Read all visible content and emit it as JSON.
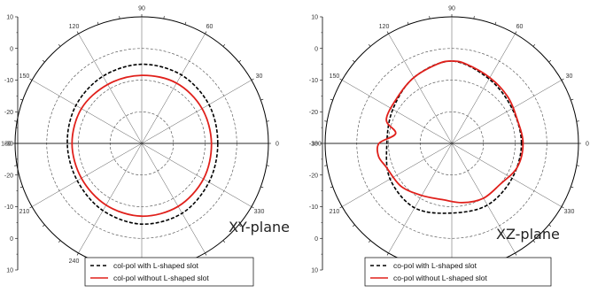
{
  "chart_data": [
    {
      "type": "polar",
      "title": "",
      "plane_label": "XY-plane",
      "r_range": [
        -30,
        10
      ],
      "r_ticks": [
        10,
        0,
        -10,
        -20,
        -30,
        -20,
        -10,
        0,
        10
      ],
      "angle_labels": [
        "0",
        "30",
        "60",
        "90",
        "120",
        "150",
        "180",
        "210",
        "240",
        "270",
        "300",
        "330"
      ],
      "grid": true,
      "legend_position": "bottom",
      "series": [
        {
          "name": "col-pol with L-shaped slot",
          "color": "#000000",
          "style": "dashed",
          "theta": [
            0,
            30,
            60,
            90,
            120,
            150,
            180,
            210,
            240,
            270,
            300,
            330,
            360
          ],
          "r": [
            -6,
            -5.5,
            -5,
            -5,
            -5.5,
            -6,
            -6.5,
            -6.5,
            -5.5,
            -4.5,
            -4.5,
            -5.5,
            -6
          ]
        },
        {
          "name": "col-pol without L-shaped slot",
          "color": "#e0201b",
          "style": "solid",
          "theta": [
            0,
            30,
            60,
            90,
            120,
            150,
            180,
            210,
            240,
            270,
            300,
            330,
            360
          ],
          "r": [
            -8,
            -8,
            -8,
            -8.5,
            -8.5,
            -8,
            -8,
            -8,
            -7.5,
            -7,
            -7,
            -7.5,
            -8
          ]
        }
      ]
    },
    {
      "type": "polar",
      "title": "",
      "plane_label": "XZ-plane",
      "r_range": [
        -30,
        10
      ],
      "r_ticks": [
        10,
        0,
        -10,
        -20,
        -30,
        -20,
        -10,
        0,
        10
      ],
      "angle_labels": [
        "0",
        "30",
        "60",
        "90",
        "120",
        "150",
        "180",
        "210",
        "240",
        "270",
        "300",
        "330"
      ],
      "grid": true,
      "legend_position": "bottom",
      "series": [
        {
          "name": "co-pol with L-shaped slot",
          "color": "#000000",
          "style": "dashed",
          "theta": [
            0,
            30,
            60,
            90,
            120,
            150,
            180,
            210,
            240,
            270,
            300,
            330,
            360
          ],
          "r": [
            -8,
            -8,
            -6.5,
            -4,
            -6,
            -8.5,
            -9.5,
            -7.5,
            -6.5,
            -8,
            -7.5,
            -8,
            -8
          ]
        },
        {
          "name": "co-pol without L-shaped slot",
          "color": "#e0201b",
          "style": "solid",
          "theta": [
            0,
            20,
            40,
            60,
            80,
            90,
            100,
            120,
            140,
            160,
            170,
            180,
            190,
            200,
            220,
            240,
            260,
            280,
            300,
            320,
            340,
            360
          ],
          "r": [
            -7.5,
            -8,
            -7,
            -6,
            -4.5,
            -4,
            -4.5,
            -6,
            -7.5,
            -8,
            -12,
            -7,
            -6.5,
            -8,
            -9,
            -11,
            -12,
            -11,
            -10,
            -10,
            -8,
            -7.5
          ]
        }
      ]
    }
  ]
}
